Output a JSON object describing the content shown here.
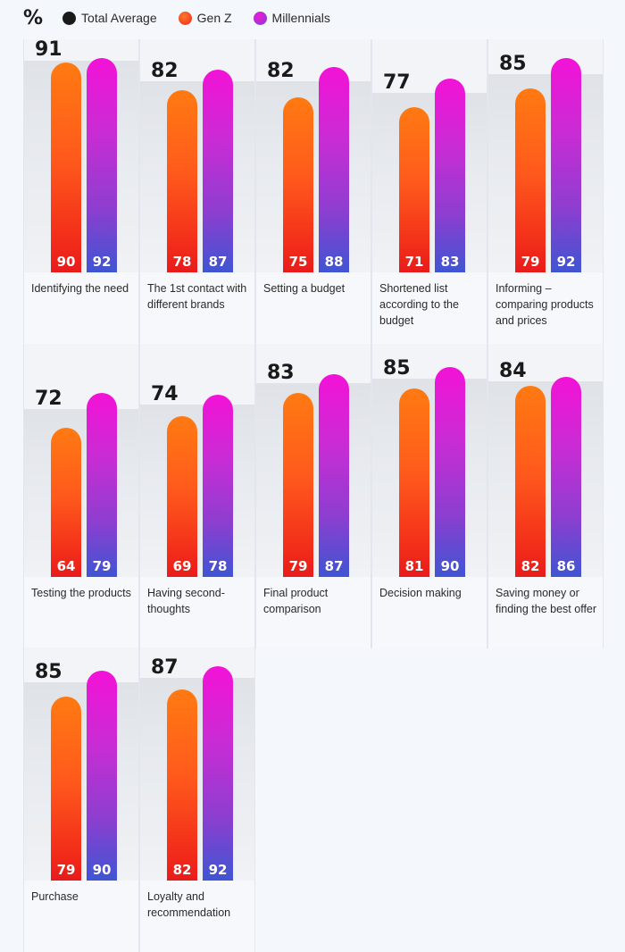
{
  "legend": {
    "unit": "%",
    "items": [
      {
        "label": "Total Average",
        "color": "#1a1a1a"
      },
      {
        "label": "Gen Z",
        "color": "#ff3d14"
      },
      {
        "label": "Millennials",
        "color": "#c72ae0"
      }
    ]
  },
  "chart_data": {
    "type": "bar",
    "ylim": [
      0,
      100
    ],
    "categories": [
      "Identifying the need",
      "The 1st contact with different brands",
      "Setting a budget",
      "Shortened list according to the budget",
      "Informing – comparing products and prices",
      "Testing the products",
      "Having second-thoughts",
      "Final product comparison",
      "Decision making",
      "Saving money or finding the best offer",
      "Purchase",
      "Loyalty and recommendation"
    ],
    "series": [
      {
        "name": "Total Average",
        "values": [
          91,
          82,
          82,
          77,
          85,
          72,
          74,
          83,
          85,
          84,
          85,
          87
        ]
      },
      {
        "name": "Gen Z",
        "values": [
          90,
          78,
          75,
          71,
          79,
          64,
          69,
          79,
          81,
          82,
          79,
          82
        ]
      },
      {
        "name": "Millennials",
        "values": [
          92,
          87,
          88,
          83,
          92,
          79,
          78,
          87,
          90,
          86,
          90,
          92
        ]
      }
    ]
  }
}
